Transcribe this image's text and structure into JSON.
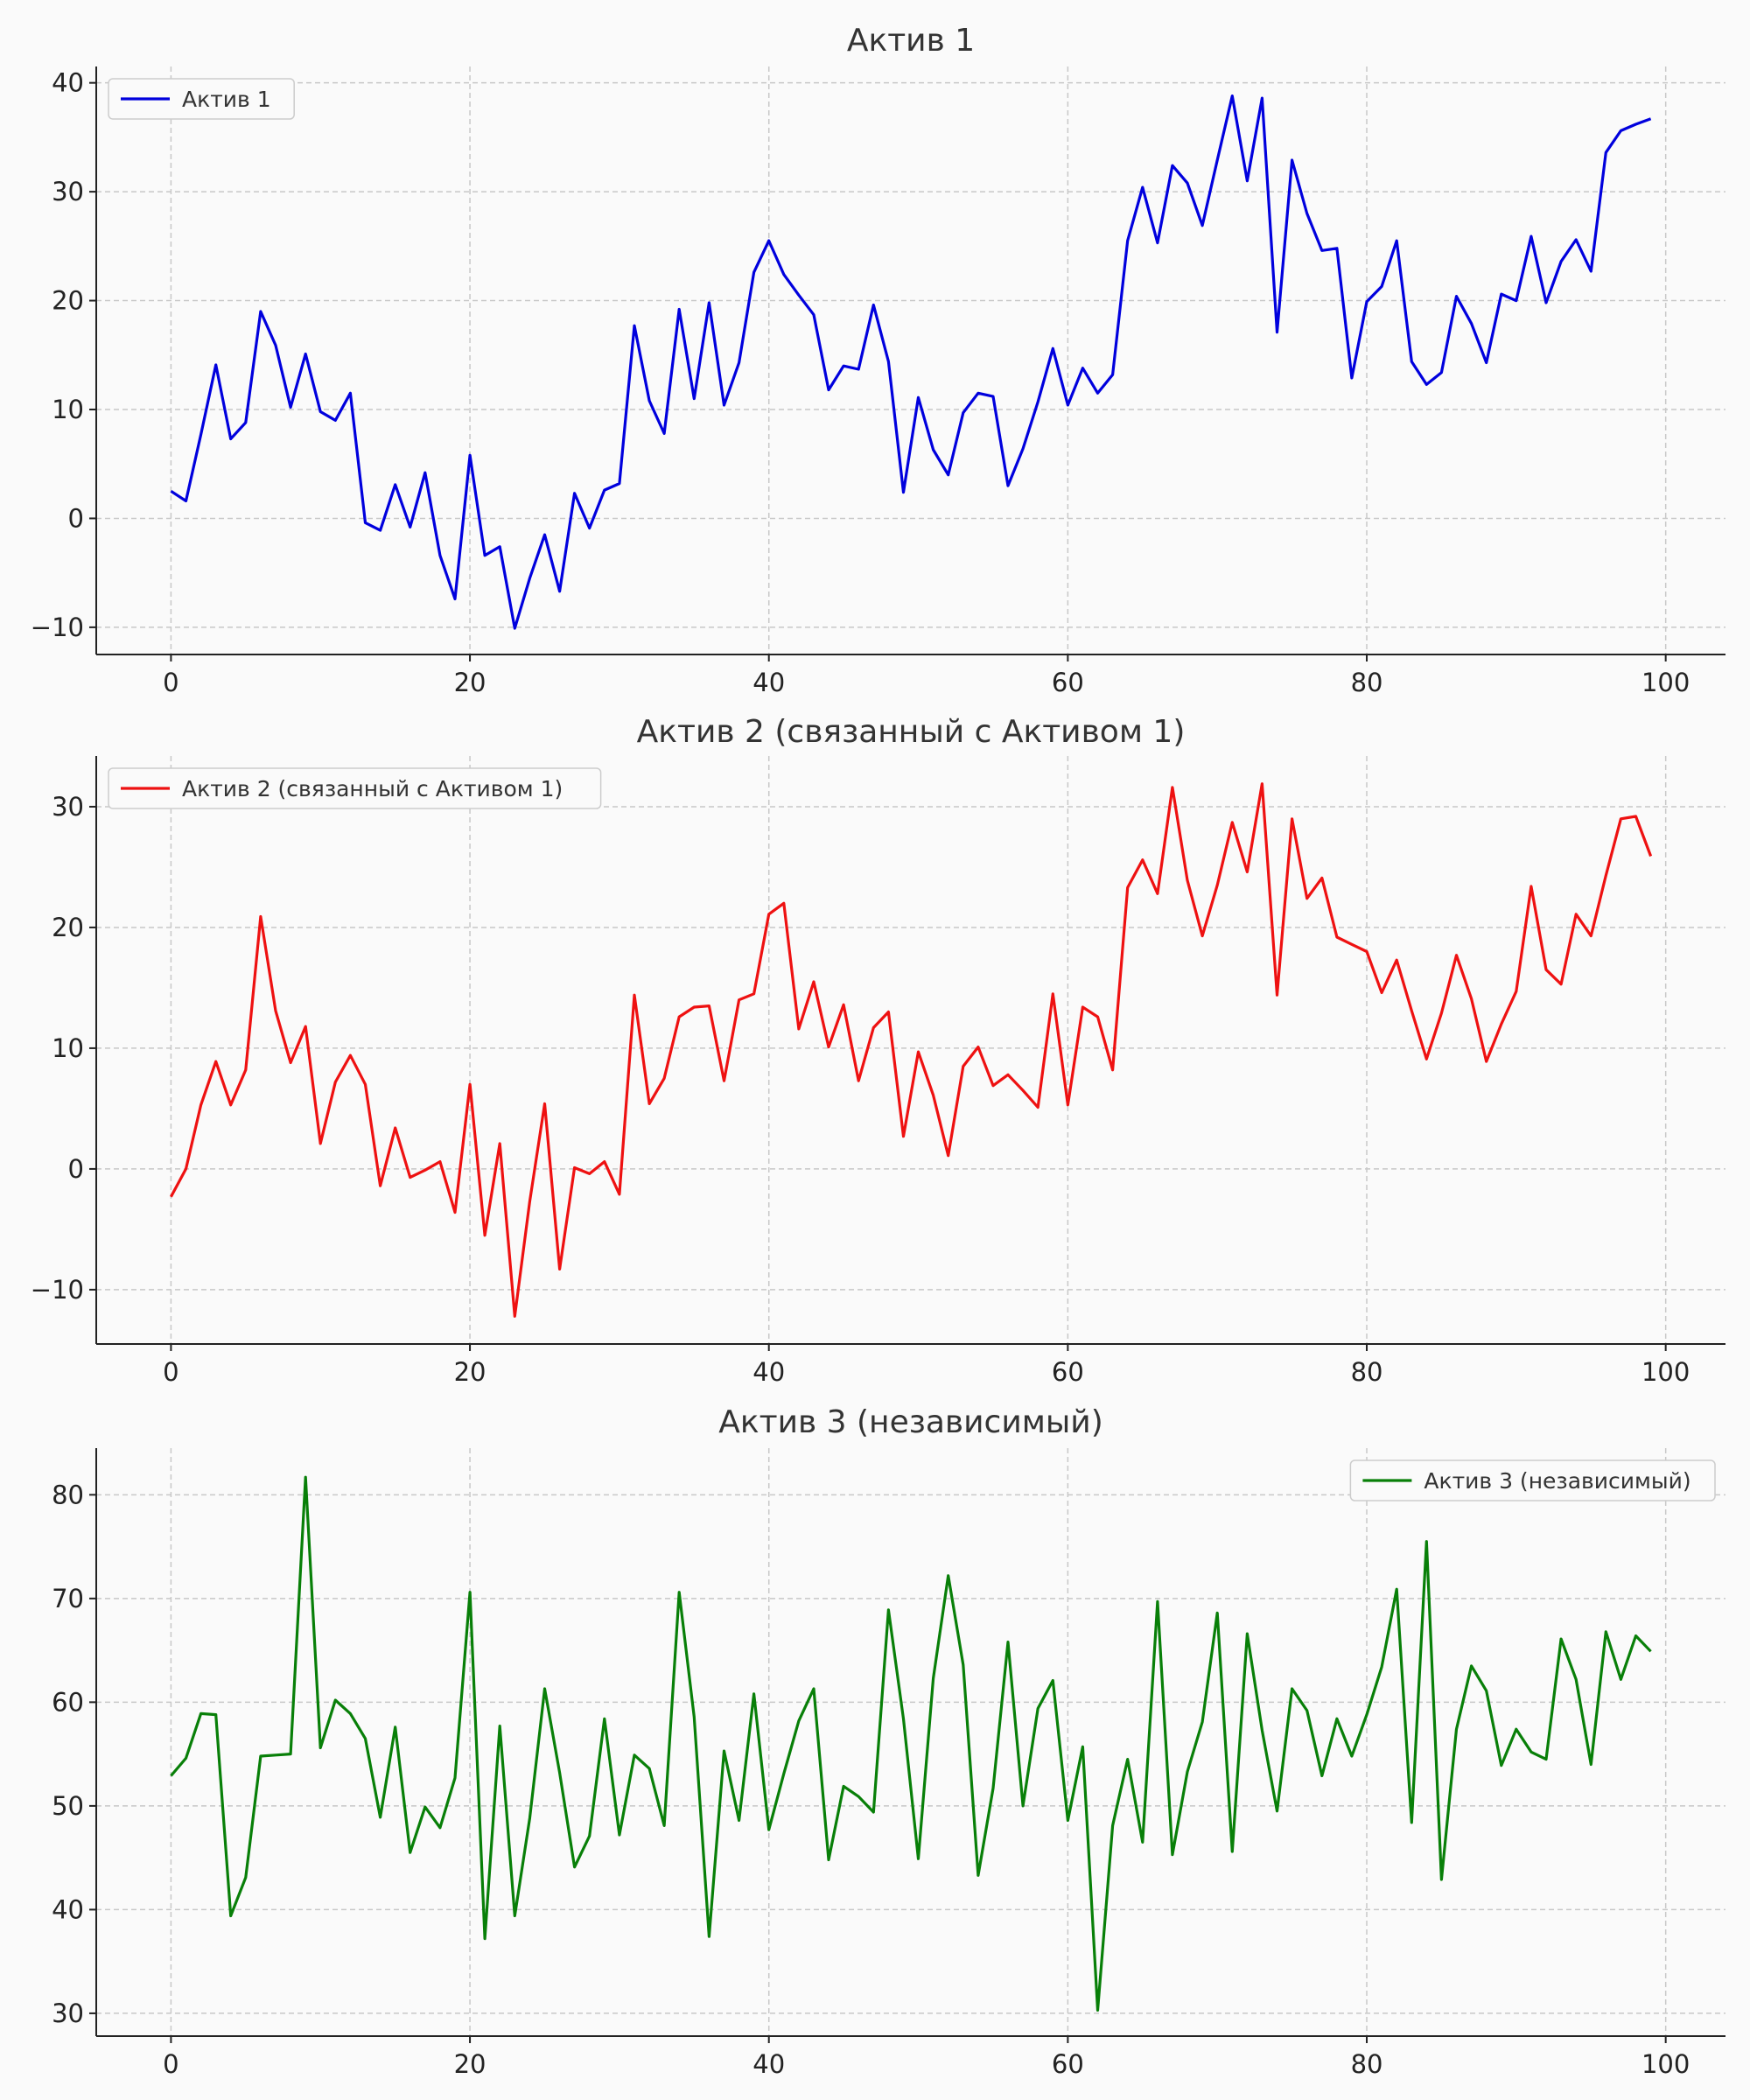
{
  "chart_data": [
    {
      "type": "line",
      "title": "Актив 1",
      "xlabel": "",
      "ylabel": "",
      "xlim": [
        -5,
        104
      ],
      "ylim": [
        -12.5,
        41.5
      ],
      "xticks": [
        0,
        20,
        40,
        60,
        80,
        100
      ],
      "yticks": [
        -10,
        0,
        10,
        20,
        30,
        40
      ],
      "grid": true,
      "legend": "upper left",
      "series": [
        {
          "name": "Актив 1",
          "color": "#0000dd",
          "x_start": 0,
          "values": [
            2.5,
            1.6,
            7.7,
            14.1,
            7.3,
            8.8,
            19.0,
            15.9,
            10.2,
            15.1,
            9.8,
            9.0,
            11.5,
            -0.4,
            -1.1,
            3.1,
            -0.8,
            4.2,
            -3.4,
            -7.4,
            5.8,
            -3.4,
            -2.6,
            -10.1,
            -5.5,
            -1.5,
            -6.7,
            2.3,
            -0.9,
            2.6,
            3.2,
            17.7,
            10.8,
            7.8,
            19.2,
            11.0,
            19.8,
            10.4,
            14.3,
            22.6,
            25.5,
            22.4,
            20.5,
            18.7,
            11.8,
            14.0,
            13.7,
            19.6,
            14.4,
            2.4,
            11.1,
            6.3,
            4.0,
            9.7,
            11.5,
            11.2,
            3.0,
            6.4,
            10.7,
            15.6,
            10.4,
            13.8,
            11.5,
            13.2,
            25.5,
            30.4,
            25.3,
            32.4,
            30.8,
            26.9,
            32.9,
            38.8,
            31.0,
            38.6,
            17.1,
            32.9,
            28.0,
            24.6,
            24.8,
            12.9,
            19.9,
            21.3,
            25.5,
            14.4,
            12.3,
            13.4,
            20.4,
            17.9,
            14.3,
            20.6,
            20.0,
            25.9,
            19.8,
            23.6,
            25.6,
            22.7,
            33.6,
            35.6,
            36.2,
            36.7
          ]
        }
      ]
    },
    {
      "type": "line",
      "title": "Актив 2 (связанный с Активом 1)",
      "xlabel": "",
      "ylabel": "",
      "xlim": [
        -5,
        104
      ],
      "ylim": [
        -14.5,
        34.2
      ],
      "xticks": [
        0,
        20,
        40,
        60,
        80,
        100
      ],
      "yticks": [
        -10,
        0,
        10,
        20,
        30
      ],
      "grid": true,
      "legend": "upper left",
      "series": [
        {
          "name": "Актив 2 (связанный с Активом 1)",
          "color": "#ee1111",
          "x_start": 0,
          "values": [
            -2.3,
            0.0,
            5.3,
            8.9,
            5.3,
            8.2,
            20.9,
            13.1,
            8.8,
            11.8,
            2.1,
            7.2,
            9.4,
            7.0,
            -1.4,
            3.4,
            -0.7,
            -0.1,
            0.6,
            -3.6,
            7.0,
            -5.5,
            2.1,
            -12.2,
            -2.7,
            5.4,
            -8.3,
            0.1,
            -0.4,
            0.6,
            -2.1,
            14.4,
            5.4,
            7.5,
            12.6,
            13.4,
            13.5,
            7.3,
            14.0,
            14.5,
            21.1,
            22.0,
            11.6,
            15.5,
            10.1,
            13.6,
            7.3,
            11.7,
            13.0,
            2.7,
            9.7,
            6.1,
            1.1,
            8.5,
            10.1,
            6.9,
            7.8,
            6.5,
            5.1,
            14.5,
            5.3,
            13.4,
            12.6,
            8.2,
            23.3,
            25.6,
            22.8,
            31.6,
            23.9,
            19.3,
            23.5,
            28.7,
            24.6,
            31.9,
            14.4,
            29.0,
            22.4,
            24.1,
            19.2,
            18.6,
            18.0,
            14.6,
            17.3,
            13.1,
            9.1,
            12.9,
            17.7,
            14.1,
            8.9,
            12.0,
            14.7,
            23.4,
            16.5,
            15.3,
            21.1,
            19.3,
            24.3,
            29.0,
            29.2,
            25.9
          ]
        }
      ]
    },
    {
      "type": "line",
      "title": "Актив 3 (независимый)",
      "xlabel": "",
      "ylabel": "",
      "xlim": [
        -5,
        104
      ],
      "ylim": [
        27.8,
        84.5
      ],
      "xticks": [
        0,
        20,
        40,
        60,
        80,
        100
      ],
      "yticks": [
        30,
        40,
        50,
        60,
        70,
        80
      ],
      "grid": true,
      "legend": "upper right",
      "series": [
        {
          "name": "Актив 3 (независимый)",
          "color": "#087f08",
          "x_start": 0,
          "values": [
            52.9,
            54.6,
            58.9,
            58.8,
            39.4,
            43.1,
            54.8,
            54.9,
            55.0,
            81.7,
            55.6,
            60.2,
            58.9,
            56.5,
            48.9,
            57.6,
            45.5,
            49.9,
            47.9,
            52.7,
            70.6,
            37.2,
            57.7,
            39.4,
            48.8,
            61.3,
            53.2,
            44.1,
            47.1,
            58.4,
            47.2,
            54.9,
            53.6,
            48.1,
            70.6,
            58.6,
            37.4,
            55.3,
            48.6,
            60.8,
            47.7,
            53.1,
            58.2,
            61.3,
            44.8,
            51.9,
            50.9,
            49.4,
            68.9,
            58.4,
            44.9,
            62.3,
            72.2,
            63.6,
            43.3,
            51.7,
            65.8,
            50.0,
            59.4,
            62.1,
            48.6,
            55.7,
            30.3,
            48.1,
            54.5,
            46.5,
            69.7,
            45.3,
            53.3,
            58.1,
            68.6,
            45.6,
            66.6,
            57.3,
            49.5,
            61.3,
            59.2,
            52.9,
            58.4,
            54.8,
            58.8,
            63.4,
            70.9,
            48.4,
            75.5,
            42.9,
            57.4,
            63.5,
            61.1,
            53.9,
            57.4,
            55.2,
            54.5,
            66.1,
            62.2,
            54.0,
            66.8,
            62.2,
            66.4,
            64.9
          ]
        }
      ]
    }
  ]
}
